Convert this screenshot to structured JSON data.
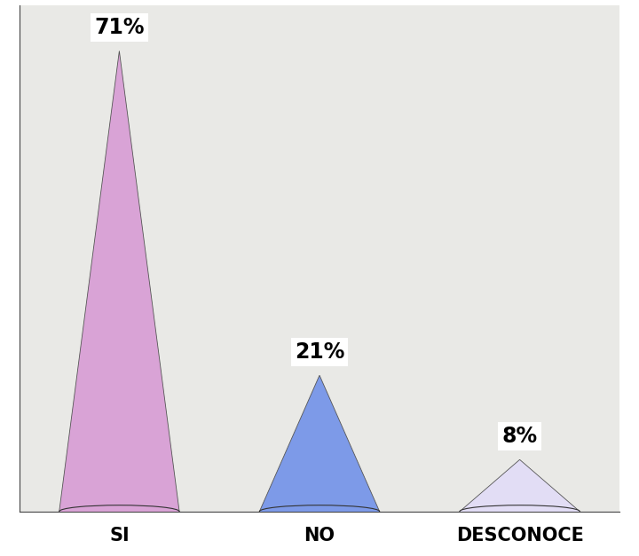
{
  "chart_data": {
    "type": "cone",
    "categories": [
      "SI",
      "NO",
      "DESCONOCE"
    ],
    "values": [
      71,
      21,
      8
    ],
    "value_labels": [
      "71%",
      "21%",
      "8%"
    ],
    "colors": [
      "#d9a3d6",
      "#7d9ae8",
      "#e2ddf5"
    ],
    "ylim": [
      0,
      78
    ],
    "data_labels": true,
    "tick_labels": "x"
  }
}
